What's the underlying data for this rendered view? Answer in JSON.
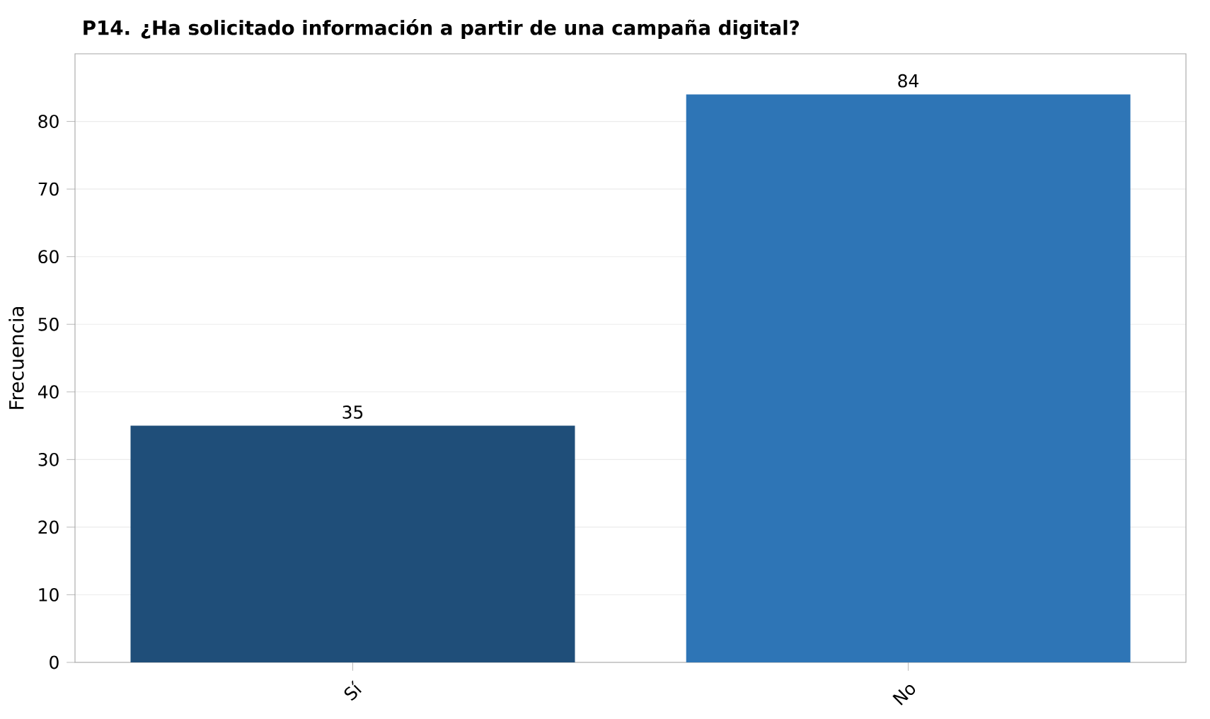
{
  "chart_data": {
    "type": "bar",
    "title": "P14. ¿Ha solicitado información a partir de una campaña digital?",
    "ylabel": "Frecuencia",
    "categories": [
      "Sí",
      "No"
    ],
    "values": [
      35,
      84
    ],
    "colors": [
      "#1f4e79",
      "#2e75b6"
    ],
    "ylim": [
      0,
      90
    ],
    "yticks": [
      0,
      10,
      20,
      30,
      40,
      50,
      60,
      70,
      80
    ],
    "grid": "y",
    "data_labels": true
  }
}
